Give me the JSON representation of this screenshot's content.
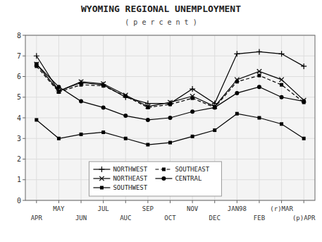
{
  "chart_data": {
    "type": "line",
    "title": "WYOMING REGIONAL UNEMPLOYMENT",
    "subtitle": "( p e r c e n t )",
    "categories": [
      "APR",
      "MAY",
      "JUN",
      "JUL",
      "AUC",
      "SEP",
      "OCT",
      "NOV",
      "DEC",
      "JAN98",
      "FEB",
      "(r)MAR",
      "(p)APR"
    ],
    "series": [
      {
        "name": "NORTHWEST",
        "color": "#000000",
        "marker": "plus",
        "line_style": "solid",
        "values": [
          7.0,
          5.3,
          5.7,
          5.6,
          5.0,
          4.7,
          4.7,
          5.4,
          4.7,
          7.1,
          7.2,
          7.1,
          6.5
        ]
      },
      {
        "name": "NORTHEAST",
        "color": "#000000",
        "marker": "x",
        "line_style": "solid",
        "values": [
          6.6,
          5.3,
          5.75,
          5.65,
          5.1,
          4.55,
          4.75,
          5.05,
          4.55,
          5.85,
          6.25,
          5.85,
          4.85
        ]
      },
      {
        "name": "SOUTHWEST",
        "color": "#000000",
        "marker": "square",
        "line_style": "solid",
        "values": [
          3.9,
          3.0,
          3.2,
          3.3,
          3.0,
          2.7,
          2.8,
          3.1,
          3.4,
          4.2,
          4.0,
          3.7,
          3.0
        ]
      },
      {
        "name": "SOUTHEAST",
        "color": "#000000",
        "marker": "square",
        "line_style": "dashed",
        "values": [
          6.5,
          5.25,
          5.6,
          5.55,
          5.05,
          4.5,
          4.65,
          4.95,
          4.5,
          5.75,
          6.05,
          5.6,
          4.75
        ]
      },
      {
        "name": "CENTRAL",
        "color": "#000000",
        "marker": "circle",
        "line_style": "solid",
        "values": [
          6.6,
          5.5,
          4.8,
          4.5,
          4.1,
          3.9,
          4.0,
          4.3,
          4.5,
          5.2,
          5.5,
          5.0,
          4.8
        ]
      }
    ],
    "ylim": [
      0,
      8
    ],
    "yticks": [
      0,
      1,
      2,
      3,
      4,
      5,
      6,
      7,
      8
    ],
    "grid": true,
    "legend": "lower left"
  }
}
